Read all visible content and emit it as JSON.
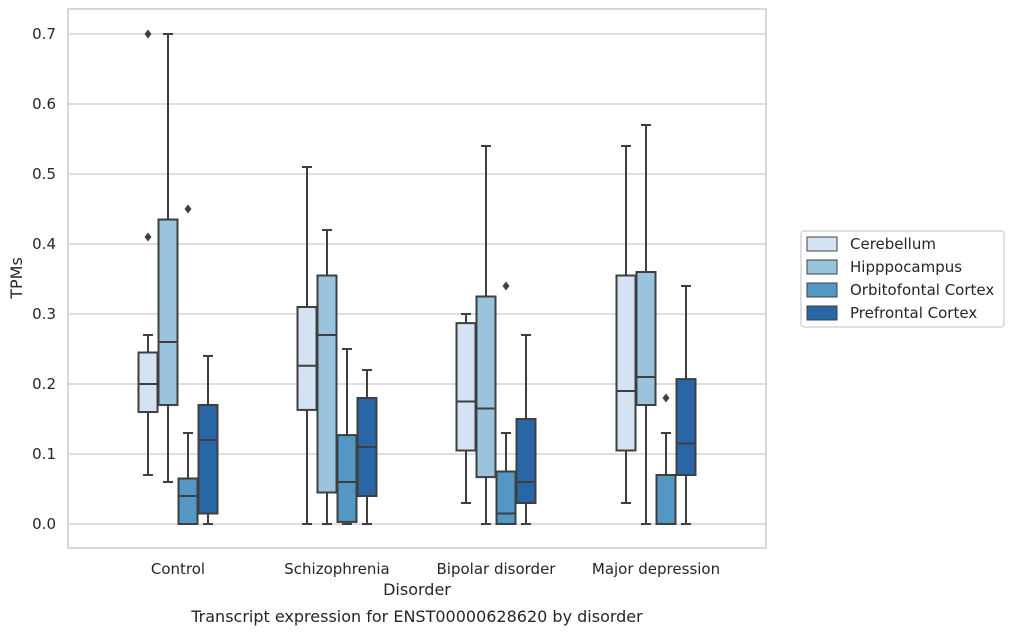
{
  "chart_data": {
    "type": "box",
    "title": "",
    "caption": "Transcript expression for ENST00000628620 by disorder",
    "xlabel": "Disorder",
    "ylabel": "TPMs",
    "ylim": [
      -0.035,
      0.737
    ],
    "yticks": [
      0.0,
      0.1,
      0.2,
      0.3,
      0.4,
      0.5,
      0.6,
      0.7
    ],
    "ytick_labels": [
      "0.0",
      "0.1",
      "0.2",
      "0.3",
      "0.4",
      "0.5",
      "0.6",
      "0.7"
    ],
    "grid": "horizontal",
    "legend_position": "right",
    "categories": [
      "Control",
      "Schizophrenia",
      "Bipolar disorder",
      "Major depression"
    ],
    "series": [
      {
        "name": "Cerebellum",
        "color": "#d4e3f3",
        "boxes": [
          {
            "whisker_low": 0.07,
            "q1": 0.16,
            "median": 0.2,
            "q3": 0.245,
            "whisker_high": 0.27,
            "outliers": [
              0.41,
              0.7
            ]
          },
          {
            "whisker_low": 0.0,
            "q1": 0.163,
            "median": 0.226,
            "q3": 0.31,
            "whisker_high": 0.51,
            "outliers": []
          },
          {
            "whisker_low": 0.03,
            "q1": 0.105,
            "median": 0.175,
            "q3": 0.287,
            "whisker_high": 0.3,
            "outliers": []
          },
          {
            "whisker_low": 0.03,
            "q1": 0.105,
            "median": 0.19,
            "q3": 0.355,
            "whisker_high": 0.54,
            "outliers": []
          }
        ]
      },
      {
        "name": "Hipppocampus",
        "color": "#9ac4de",
        "boxes": [
          {
            "whisker_low": 0.06,
            "q1": 0.17,
            "median": 0.26,
            "q3": 0.435,
            "whisker_high": 0.7,
            "outliers": []
          },
          {
            "whisker_low": 0.0,
            "q1": 0.045,
            "median": 0.27,
            "q3": 0.355,
            "whisker_high": 0.42,
            "outliers": []
          },
          {
            "whisker_low": 0.0,
            "q1": 0.067,
            "median": 0.165,
            "q3": 0.325,
            "whisker_high": 0.54,
            "outliers": []
          },
          {
            "whisker_low": 0.0,
            "q1": 0.17,
            "median": 0.21,
            "q3": 0.36,
            "whisker_high": 0.57,
            "outliers": []
          }
        ]
      },
      {
        "name": "Orbitofontal Cortex",
        "color": "#5397c5",
        "boxes": [
          {
            "whisker_low": 0.0,
            "q1": 0.0,
            "median": 0.04,
            "q3": 0.065,
            "whisker_high": 0.13,
            "outliers": [
              0.45
            ]
          },
          {
            "whisker_low": 0.0,
            "q1": 0.003,
            "median": 0.06,
            "q3": 0.127,
            "whisker_high": 0.25,
            "outliers": []
          },
          {
            "whisker_low": 0.0,
            "q1": 0.0,
            "median": 0.015,
            "q3": 0.075,
            "whisker_high": 0.13,
            "outliers": [
              0.34
            ]
          },
          {
            "whisker_low": 0.0,
            "q1": 0.0,
            "median": 0.0,
            "q3": 0.07,
            "whisker_high": 0.13,
            "outliers": [
              0.18
            ]
          }
        ]
      },
      {
        "name": "Prefrontal Cortex",
        "color": "#2866a6",
        "boxes": [
          {
            "whisker_low": 0.0,
            "q1": 0.015,
            "median": 0.12,
            "q3": 0.17,
            "whisker_high": 0.24,
            "outliers": []
          },
          {
            "whisker_low": 0.0,
            "q1": 0.04,
            "median": 0.11,
            "q3": 0.18,
            "whisker_high": 0.22,
            "outliers": []
          },
          {
            "whisker_low": 0.0,
            "q1": 0.03,
            "median": 0.06,
            "q3": 0.15,
            "whisker_high": 0.27,
            "outliers": []
          },
          {
            "whisker_low": 0.0,
            "q1": 0.07,
            "median": 0.115,
            "q3": 0.207,
            "whisker_high": 0.34,
            "outliers": []
          }
        ]
      }
    ]
  },
  "colors": {
    "grid": "#cccccc",
    "frame": "#cccccc",
    "box_edge": "#3f3f3f",
    "text": "#262626"
  }
}
